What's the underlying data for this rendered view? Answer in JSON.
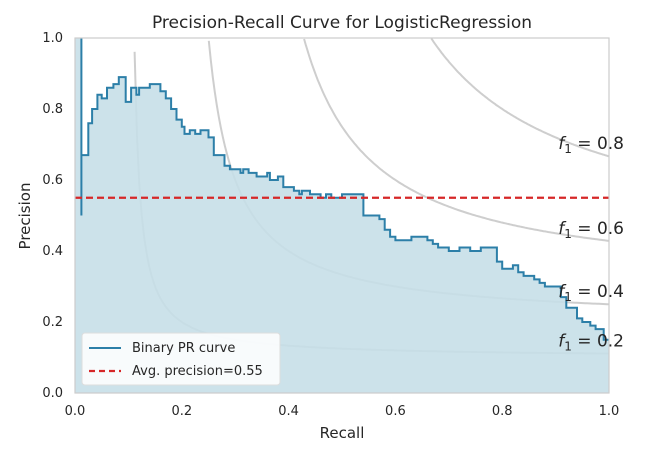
{
  "chart_data": {
    "type": "area",
    "title": "Precision-Recall Curve for LogisticRegression",
    "xlabel": "Recall",
    "ylabel": "Precision",
    "xlim": [
      0.0,
      1.0
    ],
    "ylim": [
      0.0,
      1.0
    ],
    "xticks": [
      "0.0",
      "0.2",
      "0.4",
      "0.6",
      "0.8",
      "1.0"
    ],
    "yticks": [
      "0.0",
      "0.2",
      "0.4",
      "0.6",
      "0.8",
      "1.0"
    ],
    "grid": false,
    "legend_position": "lower-left",
    "series": [
      {
        "name": "Binary PR curve",
        "color": "#2c7fa8",
        "fill": "#c6dfe8",
        "points": [
          [
            0.012,
            1.0
          ],
          [
            0.012,
            0.5
          ],
          [
            0.012,
            0.67
          ],
          [
            0.025,
            0.67
          ],
          [
            0.025,
            0.76
          ],
          [
            0.032,
            0.76
          ],
          [
            0.032,
            0.8
          ],
          [
            0.042,
            0.8
          ],
          [
            0.042,
            0.84
          ],
          [
            0.05,
            0.84
          ],
          [
            0.05,
            0.83
          ],
          [
            0.06,
            0.83
          ],
          [
            0.06,
            0.86
          ],
          [
            0.072,
            0.86
          ],
          [
            0.072,
            0.87
          ],
          [
            0.082,
            0.87
          ],
          [
            0.082,
            0.89
          ],
          [
            0.095,
            0.89
          ],
          [
            0.095,
            0.82
          ],
          [
            0.105,
            0.82
          ],
          [
            0.105,
            0.86
          ],
          [
            0.115,
            0.86
          ],
          [
            0.115,
            0.84
          ],
          [
            0.12,
            0.84
          ],
          [
            0.12,
            0.86
          ],
          [
            0.14,
            0.86
          ],
          [
            0.14,
            0.87
          ],
          [
            0.16,
            0.87
          ],
          [
            0.16,
            0.85
          ],
          [
            0.17,
            0.85
          ],
          [
            0.17,
            0.83
          ],
          [
            0.18,
            0.83
          ],
          [
            0.18,
            0.8
          ],
          [
            0.19,
            0.8
          ],
          [
            0.19,
            0.77
          ],
          [
            0.2,
            0.77
          ],
          [
            0.2,
            0.75
          ],
          [
            0.205,
            0.75
          ],
          [
            0.205,
            0.73
          ],
          [
            0.215,
            0.73
          ],
          [
            0.215,
            0.74
          ],
          [
            0.225,
            0.74
          ],
          [
            0.225,
            0.73
          ],
          [
            0.235,
            0.73
          ],
          [
            0.235,
            0.74
          ],
          [
            0.25,
            0.74
          ],
          [
            0.25,
            0.72
          ],
          [
            0.26,
            0.72
          ],
          [
            0.26,
            0.67
          ],
          [
            0.28,
            0.67
          ],
          [
            0.28,
            0.64
          ],
          [
            0.29,
            0.64
          ],
          [
            0.29,
            0.63
          ],
          [
            0.31,
            0.63
          ],
          [
            0.31,
            0.62
          ],
          [
            0.315,
            0.62
          ],
          [
            0.315,
            0.63
          ],
          [
            0.325,
            0.63
          ],
          [
            0.325,
            0.62
          ],
          [
            0.34,
            0.62
          ],
          [
            0.34,
            0.61
          ],
          [
            0.36,
            0.61
          ],
          [
            0.36,
            0.62
          ],
          [
            0.365,
            0.62
          ],
          [
            0.365,
            0.6
          ],
          [
            0.38,
            0.6
          ],
          [
            0.38,
            0.61
          ],
          [
            0.39,
            0.61
          ],
          [
            0.39,
            0.58
          ],
          [
            0.41,
            0.58
          ],
          [
            0.41,
            0.57
          ],
          [
            0.42,
            0.57
          ],
          [
            0.42,
            0.56
          ],
          [
            0.425,
            0.56
          ],
          [
            0.425,
            0.57
          ],
          [
            0.44,
            0.57
          ],
          [
            0.44,
            0.56
          ],
          [
            0.46,
            0.56
          ],
          [
            0.46,
            0.55
          ],
          [
            0.47,
            0.55
          ],
          [
            0.47,
            0.56
          ],
          [
            0.48,
            0.56
          ],
          [
            0.48,
            0.55
          ],
          [
            0.5,
            0.55
          ],
          [
            0.5,
            0.56
          ],
          [
            0.54,
            0.56
          ],
          [
            0.54,
            0.5
          ],
          [
            0.57,
            0.5
          ],
          [
            0.57,
            0.49
          ],
          [
            0.58,
            0.49
          ],
          [
            0.58,
            0.46
          ],
          [
            0.59,
            0.46
          ],
          [
            0.59,
            0.44
          ],
          [
            0.6,
            0.44
          ],
          [
            0.6,
            0.43
          ],
          [
            0.63,
            0.43
          ],
          [
            0.63,
            0.44
          ],
          [
            0.66,
            0.44
          ],
          [
            0.66,
            0.43
          ],
          [
            0.67,
            0.43
          ],
          [
            0.67,
            0.42
          ],
          [
            0.68,
            0.42
          ],
          [
            0.68,
            0.41
          ],
          [
            0.7,
            0.41
          ],
          [
            0.7,
            0.4
          ],
          [
            0.72,
            0.4
          ],
          [
            0.72,
            0.41
          ],
          [
            0.74,
            0.41
          ],
          [
            0.74,
            0.4
          ],
          [
            0.76,
            0.4
          ],
          [
            0.76,
            0.41
          ],
          [
            0.79,
            0.41
          ],
          [
            0.79,
            0.37
          ],
          [
            0.8,
            0.37
          ],
          [
            0.8,
            0.35
          ],
          [
            0.82,
            0.35
          ],
          [
            0.82,
            0.36
          ],
          [
            0.83,
            0.36
          ],
          [
            0.83,
            0.34
          ],
          [
            0.84,
            0.34
          ],
          [
            0.84,
            0.33
          ],
          [
            0.86,
            0.33
          ],
          [
            0.86,
            0.32
          ],
          [
            0.87,
            0.32
          ],
          [
            0.87,
            0.31
          ],
          [
            0.88,
            0.31
          ],
          [
            0.88,
            0.3
          ],
          [
            0.91,
            0.3
          ],
          [
            0.91,
            0.27
          ],
          [
            0.92,
            0.27
          ],
          [
            0.92,
            0.24
          ],
          [
            0.94,
            0.24
          ],
          [
            0.94,
            0.21
          ],
          [
            0.95,
            0.21
          ],
          [
            0.95,
            0.2
          ],
          [
            0.965,
            0.2
          ],
          [
            0.965,
            0.19
          ],
          [
            0.975,
            0.19
          ],
          [
            0.975,
            0.18
          ],
          [
            0.99,
            0.18
          ],
          [
            0.99,
            0.15
          ],
          [
            1.0,
            0.15
          ]
        ]
      }
    ],
    "reference_lines": [
      {
        "name": "Avg. precision=0.55",
        "y": 0.55,
        "style": "dashed",
        "color": "#d62728"
      }
    ],
    "iso_f1_curves": [
      {
        "f1": 0.2,
        "label_prefix": "f",
        "label_sub": "1",
        "label_suffix": " = 0.2"
      },
      {
        "f1": 0.4,
        "label_prefix": "f",
        "label_sub": "1",
        "label_suffix": " = 0.4"
      },
      {
        "f1": 0.6,
        "label_prefix": "f",
        "label_sub": "1",
        "label_suffix": " = 0.6"
      },
      {
        "f1": 0.8,
        "label_prefix": "f",
        "label_sub": "1",
        "label_suffix": " = 0.8"
      }
    ]
  }
}
